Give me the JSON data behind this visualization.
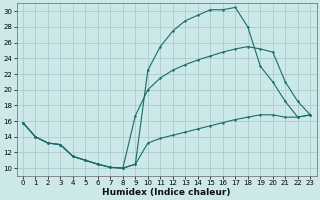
{
  "xlabel": "Humidex (Indice chaleur)",
  "bg_color": "#cce8e8",
  "grid_color": "#aacccc",
  "line_color": "#1a6b6b",
  "xlim": [
    -0.5,
    23.5
  ],
  "ylim": [
    9.0,
    31.0
  ],
  "yticks": [
    10,
    12,
    14,
    16,
    18,
    20,
    22,
    24,
    26,
    28,
    30
  ],
  "xticks": [
    0,
    1,
    2,
    3,
    4,
    5,
    6,
    7,
    8,
    9,
    10,
    11,
    12,
    13,
    14,
    15,
    16,
    17,
    18,
    19,
    20,
    21,
    22,
    23
  ],
  "curve_top_x": [
    0,
    1,
    2,
    3,
    4,
    5,
    6,
    7,
    8,
    9,
    10,
    11,
    12,
    13,
    14,
    15,
    16,
    17,
    18,
    19,
    20,
    21,
    22,
    23
  ],
  "curve_top_y": [
    15.8,
    14.0,
    13.2,
    13.0,
    11.5,
    11.0,
    10.5,
    10.1,
    10.0,
    10.5,
    22.5,
    25.5,
    27.5,
    28.8,
    29.5,
    30.2,
    30.2,
    30.5,
    28.0,
    23.0,
    21.0,
    18.5,
    16.5,
    16.8
  ],
  "curve_mid_x": [
    0,
    1,
    2,
    3,
    4,
    5,
    6,
    7,
    8,
    9,
    10,
    11,
    12,
    13,
    14,
    15,
    16,
    17,
    18,
    19,
    20,
    21,
    22,
    23
  ],
  "curve_mid_y": [
    15.8,
    14.0,
    13.2,
    13.0,
    11.5,
    11.0,
    10.5,
    10.1,
    10.0,
    16.7,
    20.0,
    21.5,
    22.5,
    23.2,
    23.8,
    24.3,
    24.8,
    25.2,
    25.5,
    25.2,
    24.8,
    21.0,
    18.5,
    16.8
  ],
  "curve_bot_x": [
    0,
    1,
    2,
    3,
    4,
    5,
    6,
    7,
    8,
    9,
    10,
    11,
    12,
    13,
    14,
    15,
    16,
    17,
    18,
    19,
    20,
    21,
    22,
    23
  ],
  "curve_bot_y": [
    15.8,
    14.0,
    13.2,
    13.0,
    11.5,
    11.0,
    10.5,
    10.1,
    10.0,
    10.5,
    13.2,
    13.8,
    14.2,
    14.6,
    15.0,
    15.4,
    15.8,
    16.2,
    16.5,
    16.8,
    16.8,
    16.5,
    16.5,
    16.8
  ]
}
